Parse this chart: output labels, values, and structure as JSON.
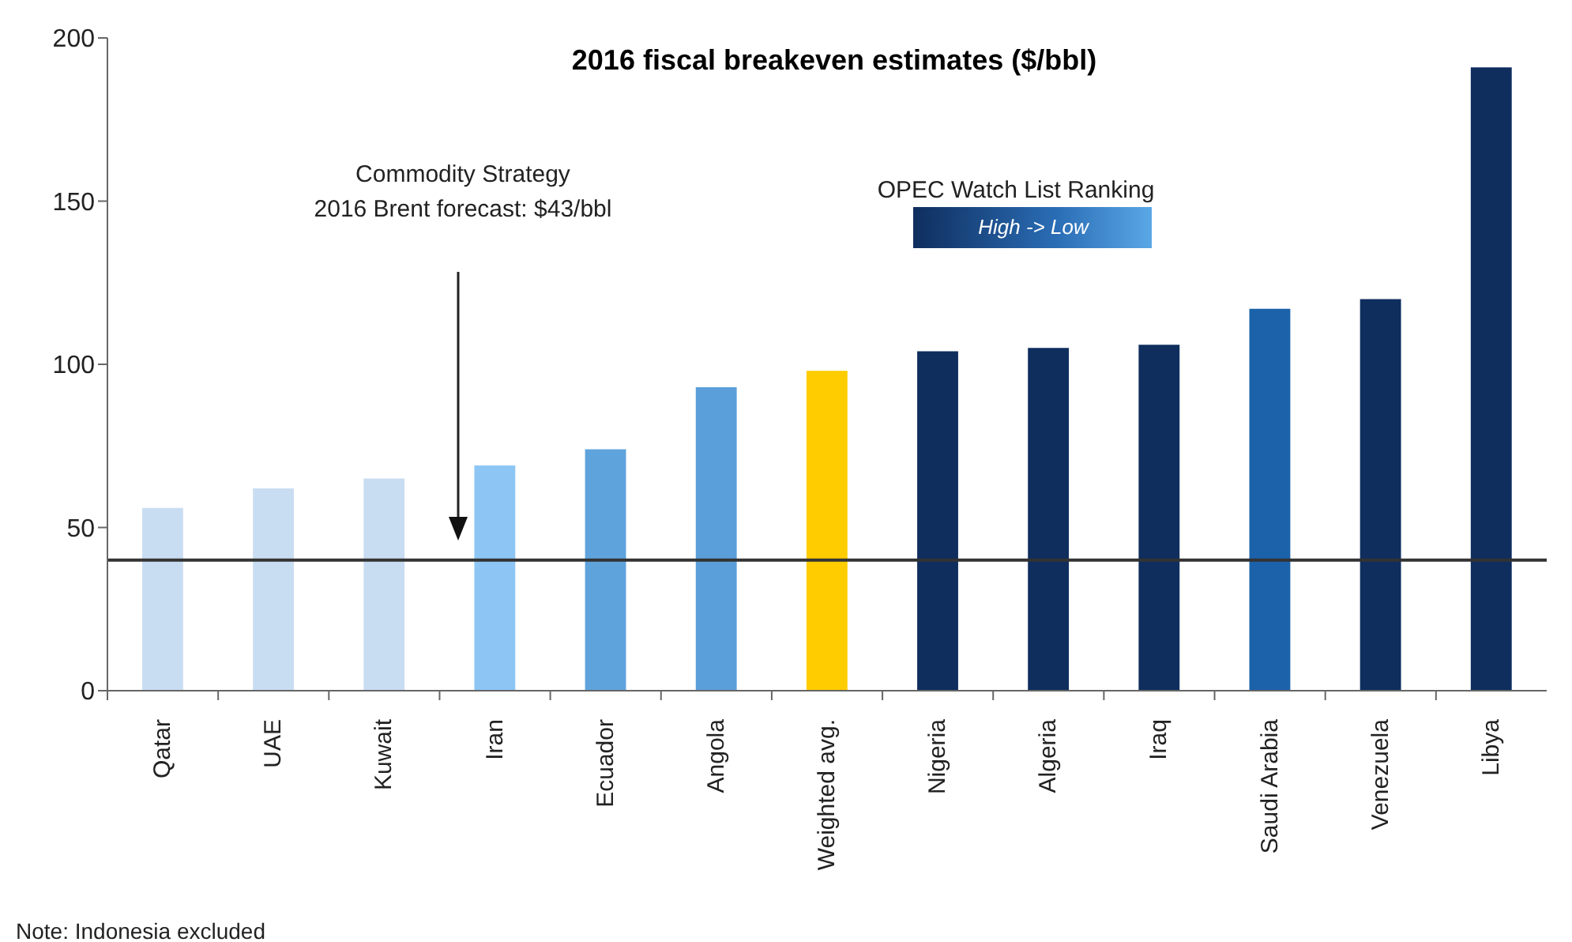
{
  "chart_data": {
    "type": "bar",
    "title": "2016 fiscal breakeven estimates ($/bbl)",
    "categories": [
      "Qatar",
      "UAE",
      "Kuwait",
      "Iran",
      "Ecuador",
      "Angola",
      "Weighted avg.",
      "Nigeria",
      "Algeria",
      "Iraq",
      "Saudi Arabia",
      "Venezuela",
      "Libya"
    ],
    "values": [
      56,
      62,
      65,
      69,
      74,
      93,
      98,
      104,
      105,
      106,
      117,
      120,
      191
    ],
    "colors": [
      "#c9ddf2",
      "#c9ddf2",
      "#c9ddf2",
      "#8dc6f4",
      "#5fa3dc",
      "#5b9fda",
      "#ffcc00",
      "#0f2e5e",
      "#0f2e5e",
      "#0f2e5e",
      "#1b62aa",
      "#0f2e5e",
      "#0f2e5e"
    ],
    "ylim": [
      0,
      200
    ],
    "yticks": [
      0,
      50,
      100,
      150,
      200
    ],
    "ref_lines": [
      {
        "axis": "y",
        "value": 40,
        "color": "#333333"
      }
    ],
    "annotations": [
      "Commodity Strategy\n2016 Brent forecast: $43/bbl",
      "OPEC Watch List Ranking",
      "High -> Low",
      "Note: Indonesia excluded"
    ],
    "grid": false,
    "legend": false
  }
}
